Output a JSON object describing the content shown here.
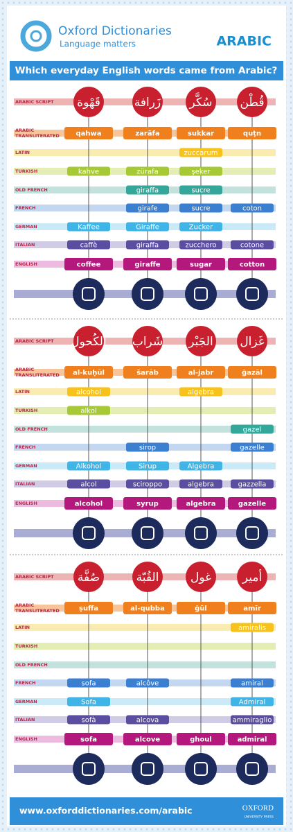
{
  "header": {
    "title": "Oxford Dictionaries",
    "tagline": "Language matters",
    "language": "ARABIC"
  },
  "question": "Which everyday English words came from Arabic?",
  "sections": [
    {
      "row_labels": [
        "ARABIC SCRIPT",
        "ARABIC TRANSLITERATED",
        "LATIN",
        "TURKISH",
        "OLD FRENCH",
        "FRENCH",
        "GERMAN",
        "ITALIAN",
        "ENGLISH"
      ],
      "columns": [
        {
          "forms": [
            "قَهْوة",
            "qahwa",
            null,
            "kahve",
            null,
            null,
            "Kaffee",
            "caffè",
            "coffee"
          ]
        },
        {
          "forms": [
            "زَرافة",
            "zarāfa",
            null,
            "zürafa",
            "giraffa",
            "girafe",
            "Giraffe",
            "giraffa",
            "giraffe"
          ]
        },
        {
          "forms": [
            "سُكَّر",
            "sukkar",
            "zuccarum",
            "şeker",
            "sucre",
            "sucre",
            "Zucker",
            "zucchero",
            "sugar"
          ]
        },
        {
          "forms": [
            "قُطْن",
            "quṭn",
            null,
            null,
            null,
            "coton",
            null,
            "cotone",
            "cotton"
          ]
        }
      ]
    },
    {
      "row_labels": [
        "ARABIC SCRIPT",
        "ARABIC TRANSLITERATED",
        "LATIN",
        "TURKISH",
        "OLD FRENCH",
        "FRENCH",
        "GERMAN",
        "ITALIAN",
        "ENGLISH"
      ],
      "columns": [
        {
          "forms": [
            "الكُحول",
            "al-kuḥūl",
            "alcohol",
            "alkol",
            null,
            null,
            "Alkohol",
            "alcol",
            "alcohol"
          ]
        },
        {
          "forms": [
            "شَراب",
            "šarāb",
            null,
            null,
            null,
            "sirop",
            "Sirup",
            "sciroppo",
            "syrup"
          ]
        },
        {
          "forms": [
            "الجَبْر",
            "al-jabr",
            "algebra",
            null,
            null,
            null,
            "Algebra",
            "algebra",
            "algebra"
          ]
        },
        {
          "forms": [
            "غَزال",
            "ġazāl",
            null,
            null,
            "gazel",
            "gazelle",
            null,
            "gazzella",
            "gazelle"
          ]
        }
      ]
    },
    {
      "row_labels": [
        "ARABIC SCRIPT",
        "ARABIC TRANSLITERATED",
        "LATIN",
        "TURKISH",
        "OLD FRENCH",
        "FRENCH",
        "GERMAN",
        "ITALIAN",
        "ENGLISH"
      ],
      "columns": [
        {
          "forms": [
            "صُفَّة",
            "ṣuffa",
            null,
            null,
            null,
            "sofa",
            "Sofa",
            "sofà",
            "sofa"
          ]
        },
        {
          "forms": [
            "القُبّة",
            "al-qubba",
            null,
            null,
            null,
            "alcôve",
            null,
            "alcova",
            "alcove"
          ]
        },
        {
          "forms": [
            "غول",
            "ġūl",
            null,
            null,
            null,
            null,
            null,
            null,
            "ghoul"
          ]
        },
        {
          "forms": [
            "أمير",
            "amīr",
            "amiralis",
            null,
            null,
            "amiral",
            "Admiral",
            "ammiraglio",
            "admiral"
          ]
        }
      ]
    }
  ],
  "footer": {
    "url": "www.oxforddictionaries.com/arabic",
    "publisher": "OXFORD",
    "press": "UNIVERSITY PRESS"
  }
}
